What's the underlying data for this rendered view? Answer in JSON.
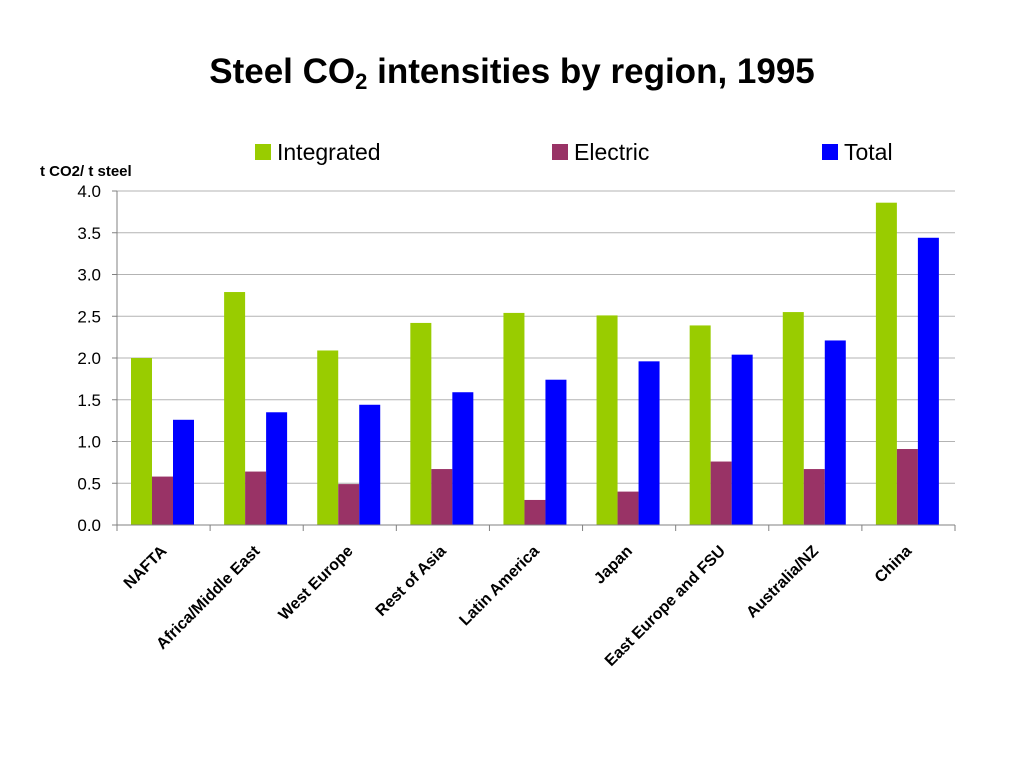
{
  "title": {
    "main": "Steel CO",
    "sub": "2",
    "rest": " intensities by region, 1995"
  },
  "chart_data": {
    "type": "bar",
    "title": "Steel CO2 intensities by region, 1995",
    "ylabel": "t CO2/ t steel",
    "xlabel": "",
    "ylim": [
      0,
      4
    ],
    "yticks": [
      "0.0",
      "0.5",
      "1.0",
      "1.5",
      "2.0",
      "2.5",
      "3.0",
      "3.5",
      "4.0"
    ],
    "grid": true,
    "legend_position": "top",
    "categories": [
      "NAFTA",
      "Africa/Middle East",
      "West Europe",
      "Rest of Asia",
      "Latin America",
      "Japan",
      "East Europe and FSU",
      "Australia/NZ",
      "China"
    ],
    "series": [
      {
        "name": "Integrated",
        "color": "#99cc00",
        "values": [
          2.0,
          2.79,
          2.09,
          2.42,
          2.54,
          2.51,
          2.39,
          2.55,
          3.86
        ]
      },
      {
        "name": "Electric",
        "color": "#993366",
        "values": [
          0.58,
          0.64,
          0.49,
          0.67,
          0.3,
          0.4,
          0.76,
          0.67,
          0.91
        ]
      },
      {
        "name": "Total",
        "color": "#0000ff",
        "values": [
          1.26,
          1.35,
          1.44,
          1.59,
          1.74,
          1.96,
          2.04,
          2.21,
          3.44
        ]
      }
    ]
  }
}
